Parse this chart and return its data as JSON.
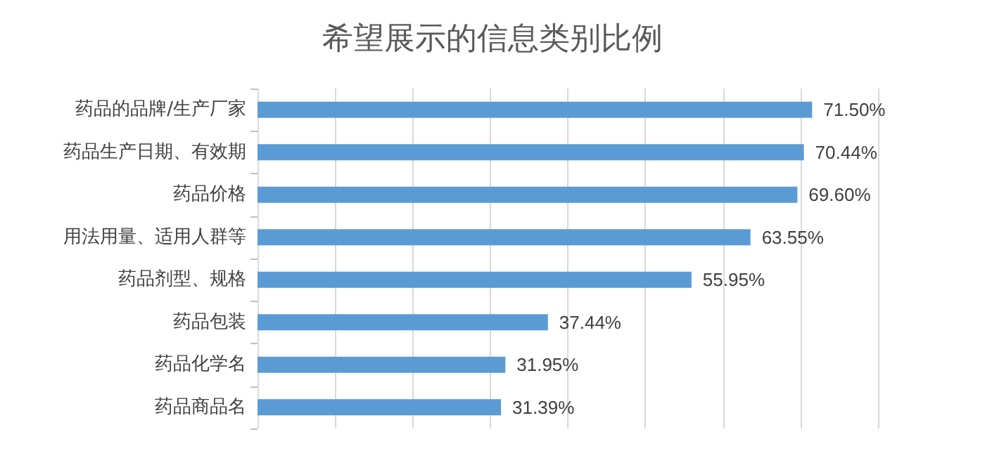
{
  "chart_data": {
    "type": "bar",
    "orientation": "horizontal",
    "title": "希望展示的信息类别比例",
    "categories": [
      "药品的品牌/生产厂家",
      "药品生产日期、有效期",
      "药品价格",
      "用法用量、适用人群等",
      "药品剂型、规格",
      "药品包装",
      "药品化学名",
      "药品商品名"
    ],
    "values": [
      71.5,
      70.44,
      69.6,
      63.55,
      55.95,
      37.44,
      31.95,
      31.39
    ],
    "value_labels": [
      "71.50%",
      "70.44%",
      "69.60%",
      "63.55%",
      "55.95%",
      "37.44%",
      "31.95%",
      "31.39%"
    ],
    "color": "#5b9bd5",
    "xlim": [
      0,
      80
    ],
    "xticks": [
      {
        "value": 0,
        "label": null
      },
      {
        "value": 10,
        "label": null
      },
      {
        "value": 20,
        "label": null
      },
      {
        "value": 30,
        "label": null
      },
      {
        "value": 40,
        "label": null
      },
      {
        "value": 50,
        "label": null
      },
      {
        "value": 60,
        "label": null
      },
      {
        "value": 70,
        "label": null
      },
      {
        "value": 80,
        "label": null
      }
    ],
    "grid": "x",
    "tick_labels": "y"
  }
}
